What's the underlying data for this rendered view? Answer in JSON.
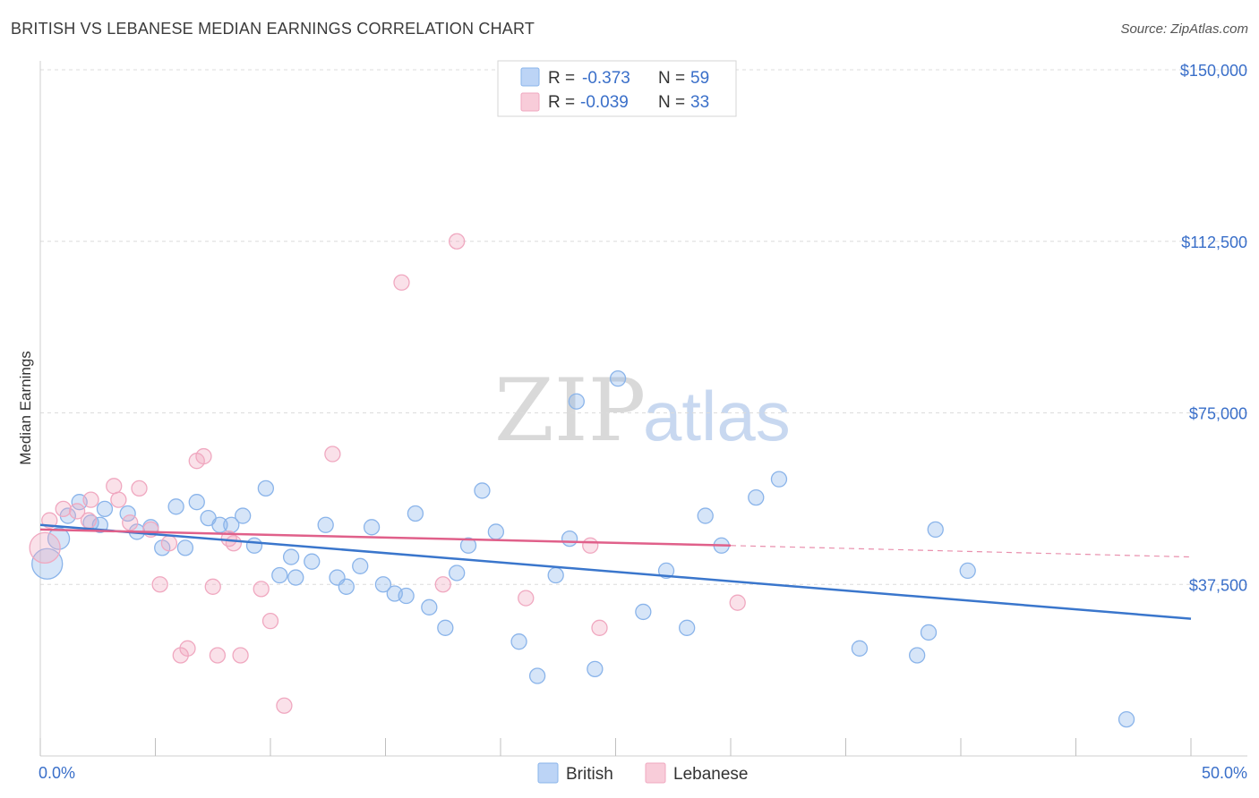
{
  "title": "BRITISH VS LEBANESE MEDIAN EARNINGS CORRELATION CHART",
  "source": "Source: ZipAtlas.com",
  "watermark": {
    "part1": "ZIP",
    "part2": "atlas"
  },
  "chart_data": {
    "type": "scatter",
    "ylabel": "Median Earnings",
    "xlim": [
      0,
      50
    ],
    "ylim": [
      0,
      150000
    ],
    "x_tick_labels": [
      "0.0%",
      "50.0%"
    ],
    "y_ticks": [
      {
        "value": 37500,
        "label": "$37,500"
      },
      {
        "value": 75000,
        "label": "$75,000"
      },
      {
        "value": 112500,
        "label": "$112,500"
      },
      {
        "value": 150000,
        "label": "$150,000"
      }
    ],
    "grid": true,
    "legend": {
      "position": "top-center",
      "entries": [
        {
          "r_label": "R =",
          "r_value": "-0.373",
          "n_label": "N =",
          "n_value": "59"
        },
        {
          "r_label": "R =",
          "r_value": "-0.039",
          "n_label": "N =",
          "n_value": "33"
        }
      ]
    },
    "series": [
      {
        "name": "British",
        "color": "#8ab4ea",
        "line_color": "#3a76cc",
        "trend": {
          "x": [
            0,
            50
          ],
          "y": [
            50500,
            30000
          ]
        },
        "points": [
          [
            0.3,
            42000,
            3
          ],
          [
            0.8,
            47500,
            2
          ],
          [
            1.2,
            52500,
            1
          ],
          [
            1.7,
            55500,
            1
          ],
          [
            2.2,
            51000,
            1
          ],
          [
            2.6,
            50500,
            1
          ],
          [
            2.8,
            54000,
            1
          ],
          [
            3.8,
            53000,
            1
          ],
          [
            4.2,
            49000,
            1
          ],
          [
            4.8,
            50000,
            1
          ],
          [
            5.3,
            45500,
            1
          ],
          [
            5.9,
            54500,
            1
          ],
          [
            6.3,
            45500,
            1
          ],
          [
            6.8,
            55500,
            1
          ],
          [
            7.3,
            52000,
            1
          ],
          [
            7.8,
            50500,
            1
          ],
          [
            8.3,
            50500,
            1
          ],
          [
            8.8,
            52500,
            1
          ],
          [
            9.3,
            46000,
            1
          ],
          [
            9.8,
            58500,
            1
          ],
          [
            10.4,
            39500,
            1
          ],
          [
            10.9,
            43500,
            1
          ],
          [
            11.1,
            39000,
            1
          ],
          [
            11.8,
            42500,
            1
          ],
          [
            12.4,
            50500,
            1
          ],
          [
            12.9,
            39000,
            1
          ],
          [
            13.3,
            37000,
            1
          ],
          [
            13.9,
            41500,
            1
          ],
          [
            14.4,
            50000,
            1
          ],
          [
            14.9,
            37500,
            1
          ],
          [
            15.4,
            35500,
            1
          ],
          [
            15.9,
            35000,
            1
          ],
          [
            16.3,
            53000,
            1
          ],
          [
            16.9,
            32500,
            1
          ],
          [
            17.6,
            28000,
            1
          ],
          [
            18.1,
            40000,
            1
          ],
          [
            18.6,
            46000,
            1
          ],
          [
            19.2,
            58000,
            1
          ],
          [
            19.8,
            49000,
            1
          ],
          [
            20.8,
            25000,
            1
          ],
          [
            21.6,
            17500,
            1
          ],
          [
            22.4,
            39500,
            1
          ],
          [
            23.0,
            47500,
            1
          ],
          [
            23.3,
            77500,
            1
          ],
          [
            24.1,
            19000,
            1
          ],
          [
            25.1,
            82500,
            1
          ],
          [
            26.2,
            31500,
            1
          ],
          [
            27.2,
            40500,
            1
          ],
          [
            28.1,
            28000,
            1
          ],
          [
            28.9,
            52500,
            1
          ],
          [
            29.6,
            46000,
            1
          ],
          [
            31.1,
            56500,
            1
          ],
          [
            32.1,
            60500,
            1
          ],
          [
            35.6,
            23500,
            1
          ],
          [
            38.1,
            22000,
            1
          ],
          [
            38.6,
            27000,
            1
          ],
          [
            38.9,
            49500,
            1
          ],
          [
            40.3,
            40500,
            1
          ],
          [
            47.2,
            8000,
            1
          ]
        ]
      },
      {
        "name": "Lebanese",
        "color": "#f0a8c0",
        "line_color": "#e0608a",
        "trend": {
          "x": [
            0,
            30
          ],
          "y": [
            49500,
            46000
          ]
        },
        "trend_dashed": {
          "x": [
            30,
            50
          ],
          "y": [
            46000,
            43500
          ]
        },
        "points": [
          [
            0.2,
            45500,
            3
          ],
          [
            0.4,
            51500,
            1
          ],
          [
            1.0,
            54000,
            1
          ],
          [
            1.6,
            53500,
            1
          ],
          [
            2.1,
            51500,
            1
          ],
          [
            2.2,
            56000,
            1
          ],
          [
            3.2,
            59000,
            1
          ],
          [
            3.4,
            56000,
            1
          ],
          [
            3.9,
            51000,
            1
          ],
          [
            4.3,
            58500,
            1
          ],
          [
            4.8,
            49500,
            1
          ],
          [
            5.2,
            37500,
            1
          ],
          [
            5.6,
            46500,
            1
          ],
          [
            6.1,
            22000,
            1
          ],
          [
            6.4,
            23500,
            1
          ],
          [
            6.8,
            64500,
            1
          ],
          [
            7.1,
            65500,
            1
          ],
          [
            7.5,
            37000,
            1
          ],
          [
            7.7,
            22000,
            1
          ],
          [
            8.2,
            47500,
            1
          ],
          [
            8.4,
            46500,
            1
          ],
          [
            8.7,
            22000,
            1
          ],
          [
            9.6,
            36500,
            1
          ],
          [
            10.0,
            29500,
            1
          ],
          [
            10.6,
            11000,
            1
          ],
          [
            12.7,
            66000,
            1
          ],
          [
            15.7,
            103500,
            1
          ],
          [
            17.5,
            37500,
            1
          ],
          [
            18.1,
            112500,
            1
          ],
          [
            21.1,
            34500,
            1
          ],
          [
            23.9,
            46000,
            1
          ],
          [
            24.3,
            28000,
            1
          ],
          [
            30.3,
            33500,
            1
          ]
        ]
      }
    ]
  }
}
